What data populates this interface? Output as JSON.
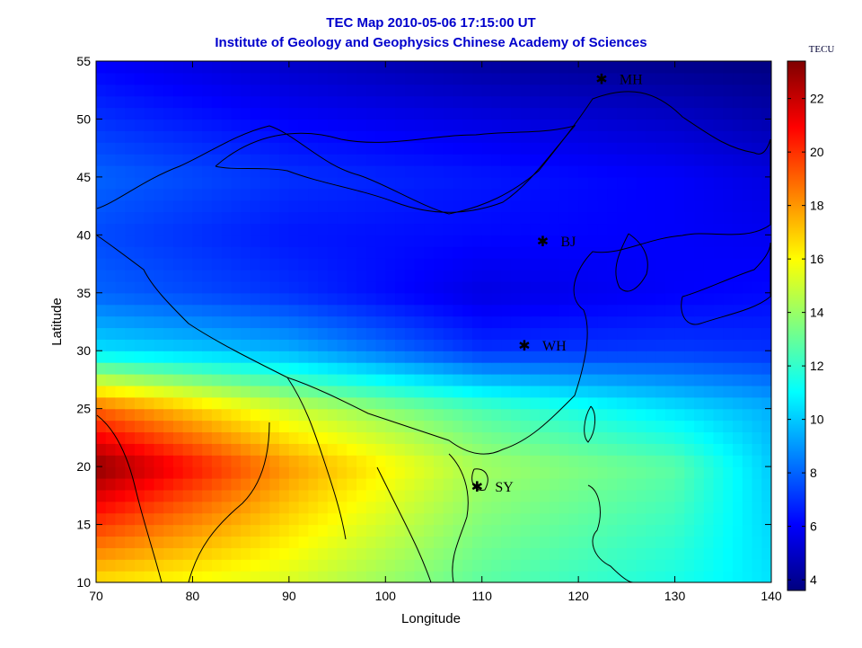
{
  "title": "TEC Map 2010-05-06 17:15:00 UT",
  "subtitle": "Institute of Geology and Geophysics Chinese Academy of Sciences",
  "xlabel": "Longitude",
  "ylabel": "Latitude",
  "xticks": [
    "70",
    "80",
    "90",
    "100",
    "110",
    "120",
    "130",
    "140"
  ],
  "yticks": [
    "10",
    "15",
    "20",
    "25",
    "30",
    "35",
    "40",
    "45",
    "50",
    "55"
  ],
  "colorbar": {
    "unit": "TECU",
    "ticks": [
      "4",
      "6",
      "8",
      "10",
      "12",
      "14",
      "16",
      "18",
      "20",
      "22"
    ],
    "range": [
      3.6,
      23.4
    ]
  },
  "stations": [
    {
      "code": "MH",
      "lon": 122.4,
      "lat": 53.5
    },
    {
      "code": "BJ",
      "lon": 116.3,
      "lat": 39.5
    },
    {
      "code": "WH",
      "lon": 114.4,
      "lat": 30.5
    },
    {
      "code": "SY",
      "lon": 109.5,
      "lat": 18.3
    }
  ],
  "chart_data": {
    "type": "heatmap",
    "title": "TEC Map 2010-05-06 17:15:00 UT",
    "subtitle": "Institute of Geology and Geophysics Chinese Academy of Sciences",
    "xlabel": "Longitude",
    "ylabel": "Latitude",
    "xlim": [
      70,
      140
    ],
    "ylim": [
      10,
      55
    ],
    "colorbar_unit": "TECU",
    "colorbar_range": [
      3.6,
      23.4
    ],
    "colormap": "jet",
    "grid": false,
    "legend": "colorbar-right",
    "lat_profile_tecu": [
      {
        "lat": 10,
        "lon70": 16.5,
        "lon90": 15.2,
        "lon110": 12.8,
        "lon130": 11.5,
        "lon140": 10.5
      },
      {
        "lat": 20,
        "lon70": 23.2,
        "lon90": 18.0,
        "lon110": 14.2,
        "lon130": 12.8,
        "lon140": 10.0
      },
      {
        "lat": 25,
        "lon70": 19.0,
        "lon90": 15.0,
        "lon110": 12.5,
        "lon130": 10.5,
        "lon140": 9.5
      },
      {
        "lat": 30,
        "lon70": 10.5,
        "lon90": 9.5,
        "lon110": 7.0,
        "lon130": 7.2,
        "lon140": 7.0
      },
      {
        "lat": 35,
        "lon70": 8.0,
        "lon90": 7.0,
        "lon110": 5.5,
        "lon130": 6.0,
        "lon140": 6.2
      },
      {
        "lat": 40,
        "lon70": 7.5,
        "lon90": 6.5,
        "lon110": 6.2,
        "lon130": 6.0,
        "lon140": 5.8
      },
      {
        "lat": 45,
        "lon70": 8.0,
        "lon90": 7.0,
        "lon110": 6.5,
        "lon130": 6.0,
        "lon140": 5.5
      },
      {
        "lat": 50,
        "lon70": 7.0,
        "lon90": 6.0,
        "lon110": 5.5,
        "lon130": 5.0,
        "lon140": 4.5
      },
      {
        "lat": 55,
        "lon70": 6.0,
        "lon90": 5.0,
        "lon110": 4.2,
        "lon130": 3.8,
        "lon140": 3.6
      }
    ]
  }
}
